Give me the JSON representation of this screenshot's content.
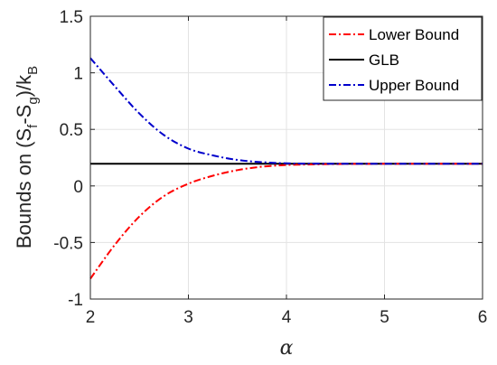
{
  "chart_data": {
    "type": "line",
    "title": "",
    "xlabel": "α",
    "ylabel": {
      "base": "Bounds on (S",
      "sub_f": "f",
      "mid": "-S",
      "sub_g": "g",
      "end": ")/k",
      "sub_B": "B"
    },
    "xlim": [
      2,
      6
    ],
    "ylim": [
      -1,
      1.5
    ],
    "xticks": [
      2,
      3,
      4,
      5,
      6
    ],
    "xtick_labels": [
      "2",
      "3",
      "4",
      "5",
      "6"
    ],
    "yticks": [
      -1,
      -0.5,
      0,
      0.5,
      1,
      1.5
    ],
    "ytick_labels": [
      "-1",
      "-0.5",
      "0",
      "0.5",
      "1",
      "1.5"
    ],
    "grid": true,
    "legend_position": "top-right",
    "series": [
      {
        "name": "Lower Bound",
        "color": "#ff0000",
        "style": "dashdot",
        "x": [
          2.0,
          2.25,
          2.5,
          2.75,
          3.0,
          3.25,
          3.5,
          3.75,
          4.0,
          4.25,
          4.5,
          4.75,
          5.0,
          5.25,
          5.5,
          5.75,
          6.0
        ],
        "y": [
          -0.82,
          -0.52,
          -0.27,
          -0.09,
          0.02,
          0.09,
          0.14,
          0.17,
          0.185,
          0.19,
          0.193,
          0.195,
          0.196,
          0.196,
          0.196,
          0.196,
          0.196
        ]
      },
      {
        "name": "GLB",
        "color": "#000000",
        "style": "solid",
        "x": [
          2,
          6
        ],
        "y": [
          0.196,
          0.196
        ]
      },
      {
        "name": "Upper Bound",
        "color": "#0000cc",
        "style": "dashdot",
        "x": [
          2.0,
          2.25,
          2.5,
          2.75,
          3.0,
          3.25,
          3.5,
          3.75,
          4.0,
          4.25,
          4.5,
          4.75,
          5.0,
          5.25,
          5.5,
          5.75,
          6.0
        ],
        "y": [
          1.13,
          0.88,
          0.64,
          0.45,
          0.33,
          0.27,
          0.23,
          0.21,
          0.2,
          0.197,
          0.196,
          0.196,
          0.196,
          0.196,
          0.196,
          0.196,
          0.196
        ]
      }
    ]
  }
}
